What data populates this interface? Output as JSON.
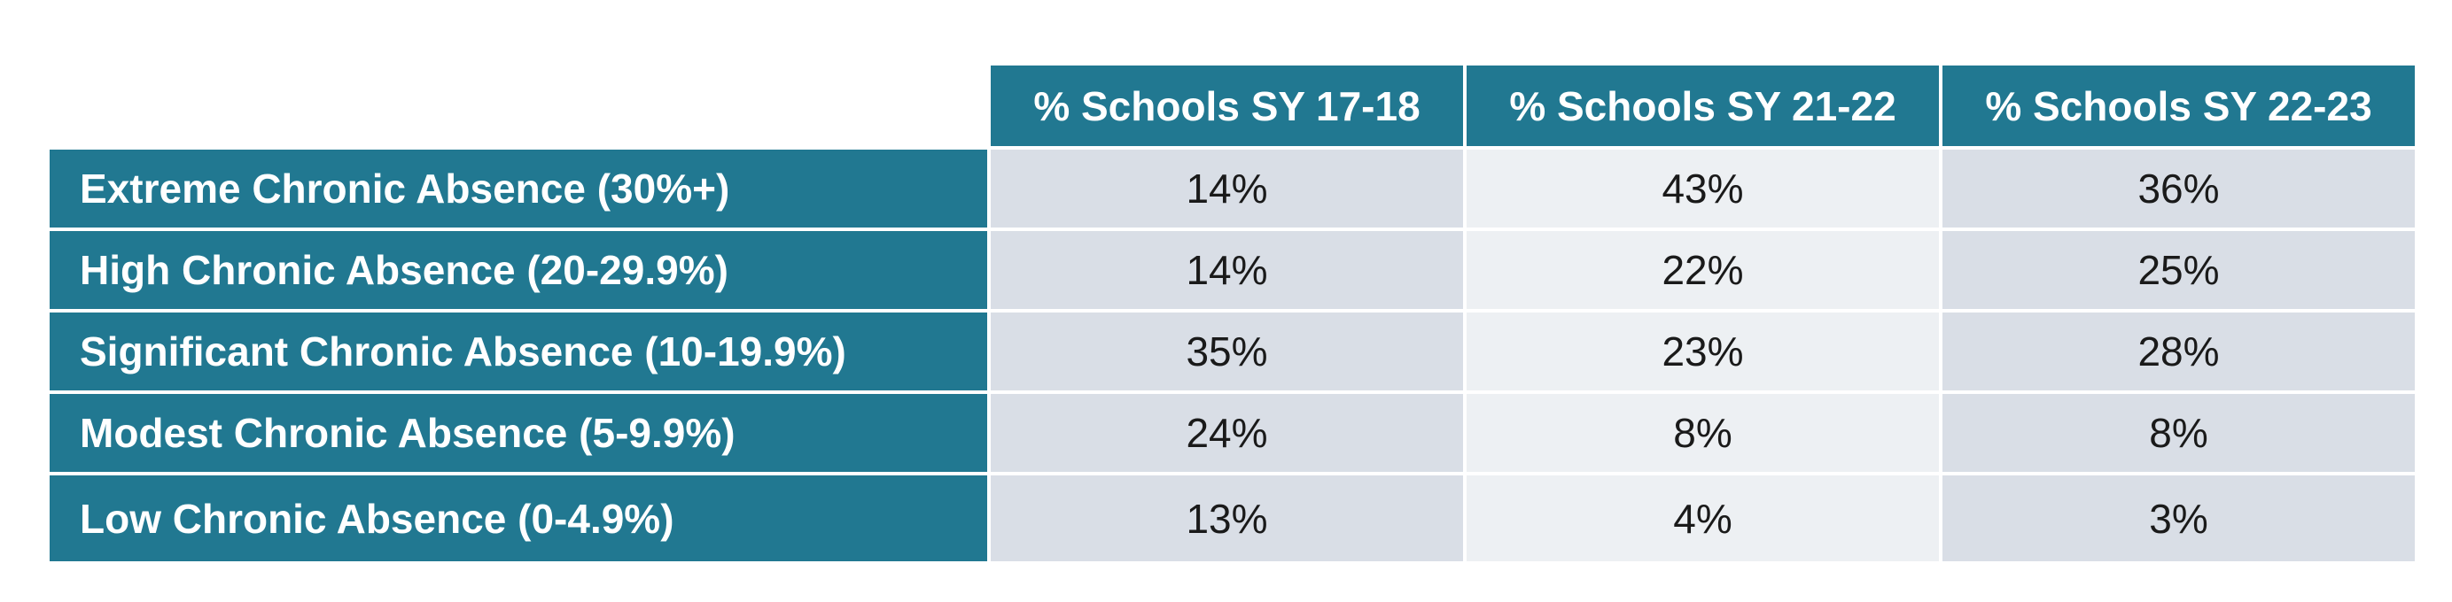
{
  "colors": {
    "header_bg": "#217891",
    "header_text": "#ffffff",
    "cell_bg_dark": "#d9dee6",
    "cell_bg_light": "#edf0f3",
    "cell_text": "#1a1a1a"
  },
  "chart_data": {
    "type": "table",
    "columns": [
      "% Schools SY 17-18",
      "% Schools SY 21-22",
      "% Schools SY 22-23"
    ],
    "rows": [
      {
        "label": "Extreme Chronic Absence (30%+)",
        "values": [
          "14%",
          "43%",
          "36%"
        ]
      },
      {
        "label": "High Chronic Absence (20-29.9%)",
        "values": [
          "14%",
          "22%",
          "25%"
        ]
      },
      {
        "label": "Significant Chronic Absence (10-19.9%)",
        "values": [
          "35%",
          "23%",
          "28%"
        ]
      },
      {
        "label": "Modest Chronic Absence (5-9.9%)",
        "values": [
          "24%",
          "8%",
          "8%"
        ]
      },
      {
        "label": "Low Chronic Absence (0-4.9%)",
        "values": [
          "13%",
          "4%",
          "3%"
        ]
      }
    ]
  }
}
